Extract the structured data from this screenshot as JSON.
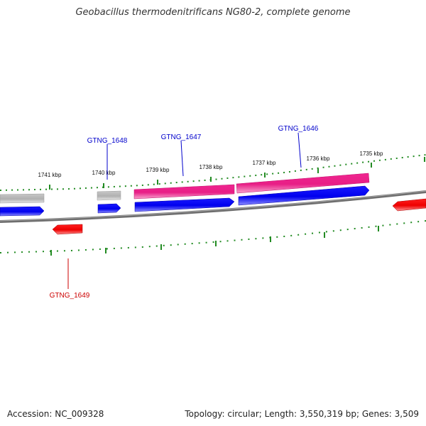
{
  "header": {
    "title": "Geobacillus thermodenitrificans NG80-2, complete genome"
  },
  "footer": {
    "accession": "Accession: NC_009328",
    "topology": "Topology: circular; Length: 3,550,319 bp; Genes: 3,509"
  },
  "ticks": {
    "labels": [
      "1741 kbp",
      "1740 kbp",
      "1739 kbp",
      "1738 kbp",
      "1737 kbp",
      "1736 kbp",
      "1735 kbp"
    ]
  },
  "genes": [
    {
      "label": "GTNG_1648",
      "label_color": "#0000cc"
    },
    {
      "label": "GTNG_1647",
      "label_color": "#0000cc"
    },
    {
      "label": "GTNG_1646",
      "label_color": "#0000cc"
    },
    {
      "label": "GTNG_1649",
      "label_color": "#cc0000"
    }
  ],
  "colors": {
    "forward_cds": "#0000ee",
    "reverse_cds": "#ee0000",
    "rna_feature": "#ee1a86",
    "other_feature": "#b3b3b3",
    "tick": "#228b22",
    "backbone": "#707070"
  }
}
